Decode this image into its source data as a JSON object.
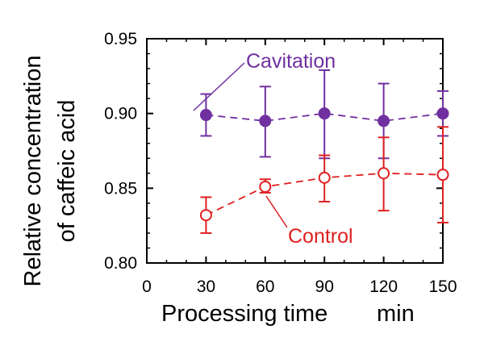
{
  "chart_data": {
    "type": "scatter",
    "title": "",
    "xlabel": "Processing time",
    "xunit": "min",
    "ylabel_lines": [
      "Relative concentration",
      "of caffeic acid"
    ],
    "xlim": [
      0,
      150
    ],
    "ylim": [
      0.8,
      0.95
    ],
    "x_ticks": [
      0,
      30,
      60,
      90,
      120,
      150
    ],
    "y_ticks": [
      "0.80",
      "0.85",
      "0.90",
      "0.95"
    ],
    "x": [
      30,
      60,
      90,
      120,
      150
    ],
    "series": [
      {
        "name": "Cavitation",
        "color": "#7030a0",
        "marker": "filled-circle",
        "line": "dashed",
        "values": [
          0.899,
          0.895,
          0.9,
          0.895,
          0.9
        ],
        "err_low": [
          0.885,
          0.871,
          0.87,
          0.87,
          0.885
        ],
        "err_high": [
          0.913,
          0.918,
          0.929,
          0.92,
          0.915
        ]
      },
      {
        "name": "Control",
        "color": "#e02020",
        "marker": "open-circle",
        "line": "dashed",
        "values": [
          0.832,
          0.851,
          0.857,
          0.86,
          0.859
        ],
        "err_low": [
          0.82,
          0.847,
          0.841,
          0.835,
          0.827
        ],
        "err_high": [
          0.844,
          0.856,
          0.872,
          0.884,
          0.891
        ]
      }
    ]
  }
}
